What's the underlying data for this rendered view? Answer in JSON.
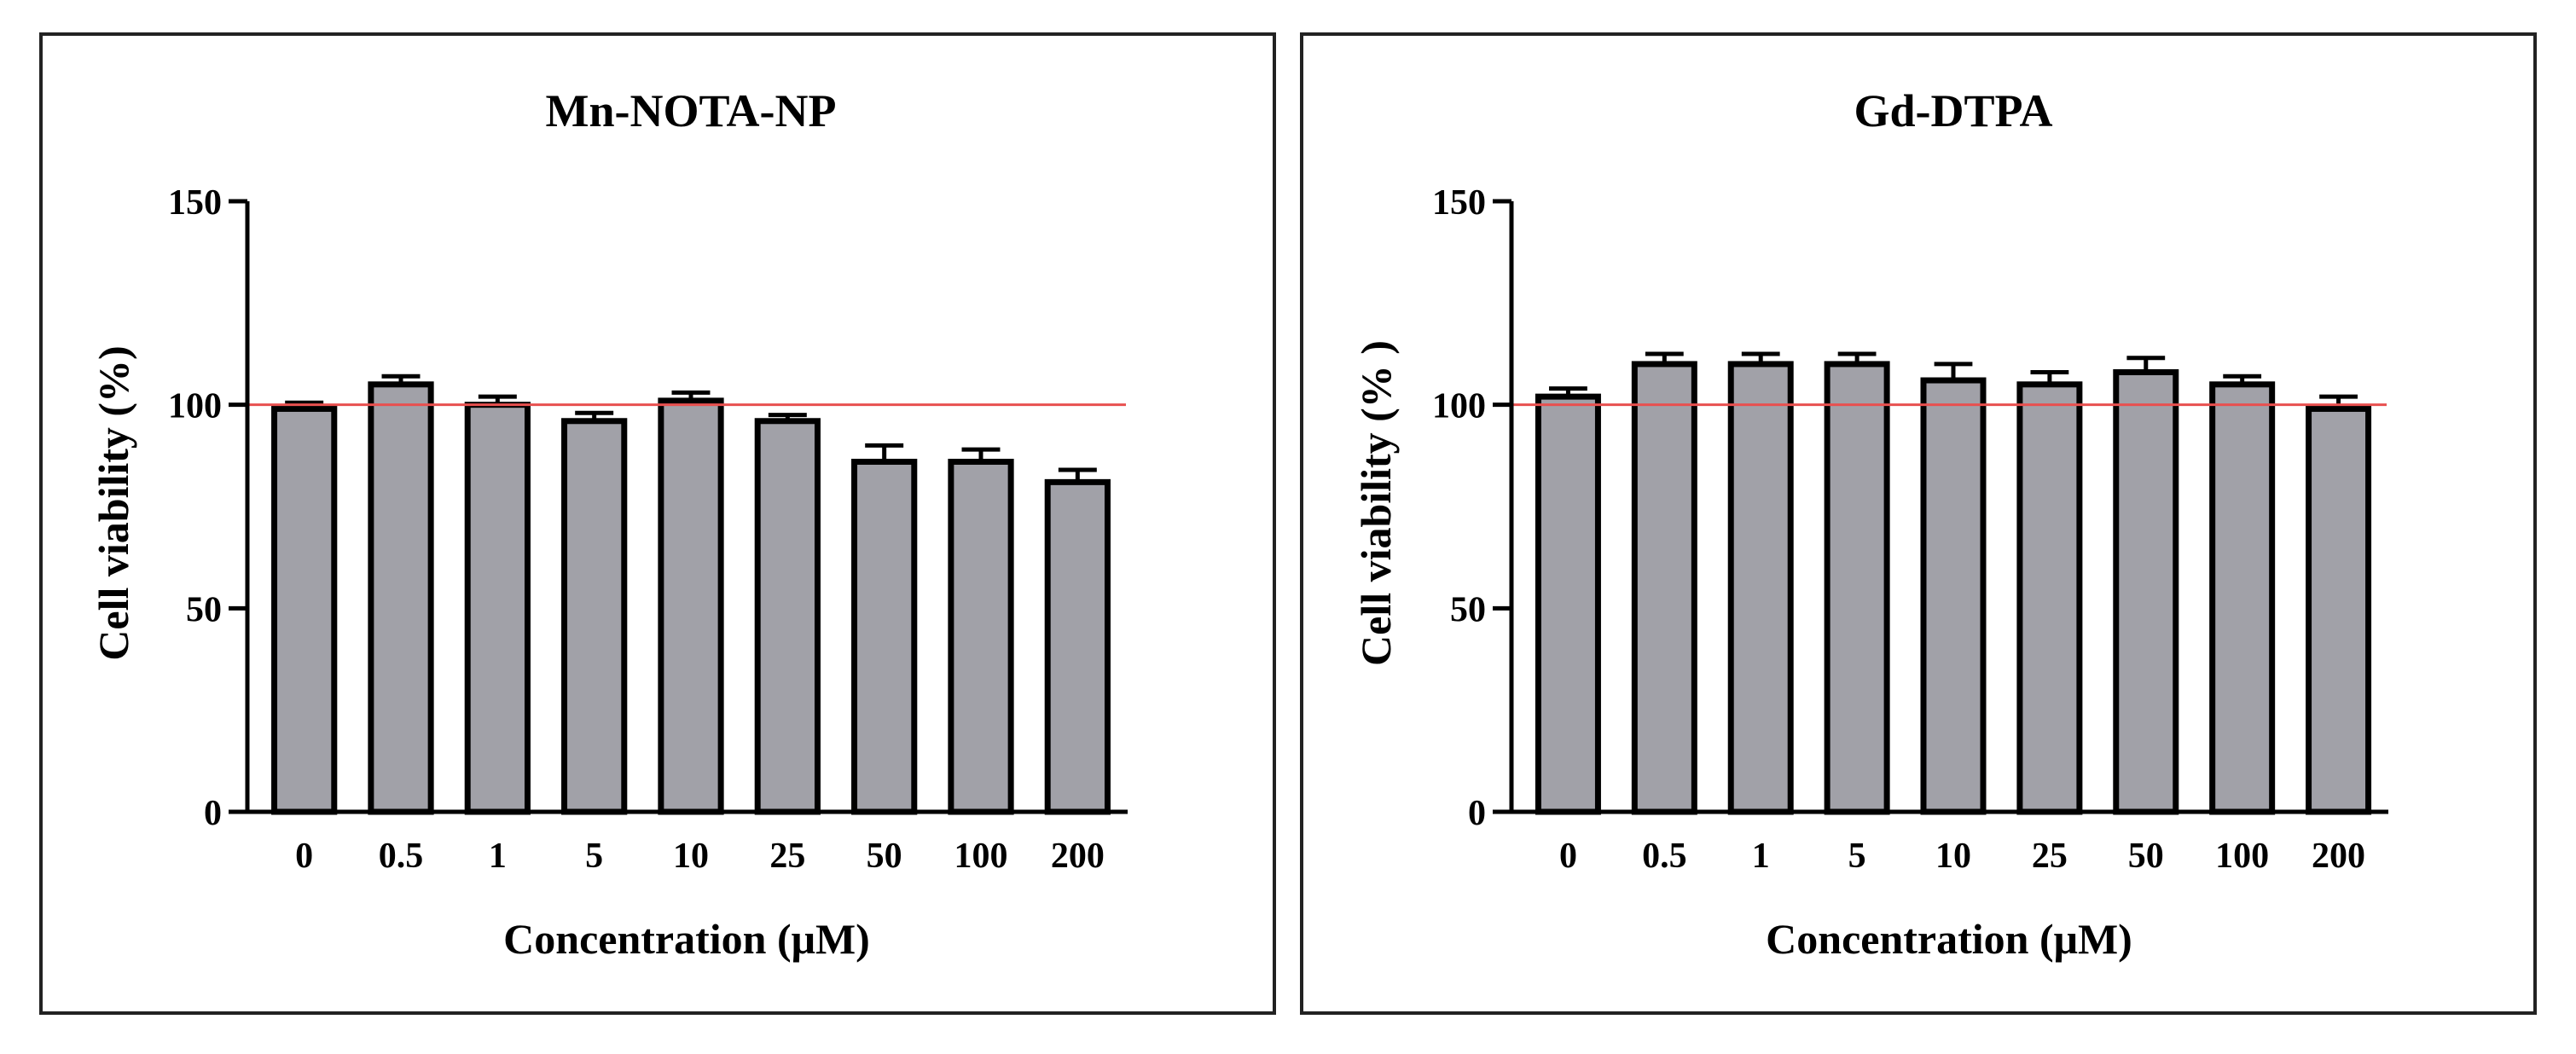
{
  "chart_data": [
    {
      "type": "bar",
      "title": "Mn-NOTA-NP",
      "xlabel": "Concentration (μM)",
      "ylabel": "Cell viability (%)",
      "categories": [
        "0",
        "0.5",
        "1",
        "5",
        "10",
        "25",
        "50",
        "100",
        "200"
      ],
      "values": [
        99,
        105,
        100,
        96,
        101,
        96,
        86,
        86,
        81
      ],
      "errors": [
        1.5,
        2,
        2,
        2,
        2,
        1.5,
        4,
        3,
        3
      ],
      "ylim": [
        0,
        150
      ],
      "yticks": [
        0,
        50,
        100,
        150
      ],
      "reference_line": 100,
      "bar_color": "#a1a1a8",
      "reference_color": "#e8504f",
      "grid": false
    },
    {
      "type": "bar",
      "title": "Gd-DTPA",
      "xlabel": "Concentration (μM)",
      "ylabel": "Cell viability (% )",
      "categories": [
        "0",
        "0.5",
        "1",
        "5",
        "10",
        "25",
        "50",
        "100",
        "200"
      ],
      "values": [
        102,
        110,
        110,
        110,
        106,
        105,
        108,
        105,
        99
      ],
      "errors": [
        2,
        2.5,
        2.5,
        2.5,
        4,
        3,
        3.5,
        2,
        3
      ],
      "ylim": [
        0,
        150
      ],
      "yticks": [
        0,
        50,
        100,
        150
      ],
      "reference_line": 100,
      "bar_color": "#a1a1a8",
      "reference_color": "#e8504f",
      "grid": false
    }
  ]
}
